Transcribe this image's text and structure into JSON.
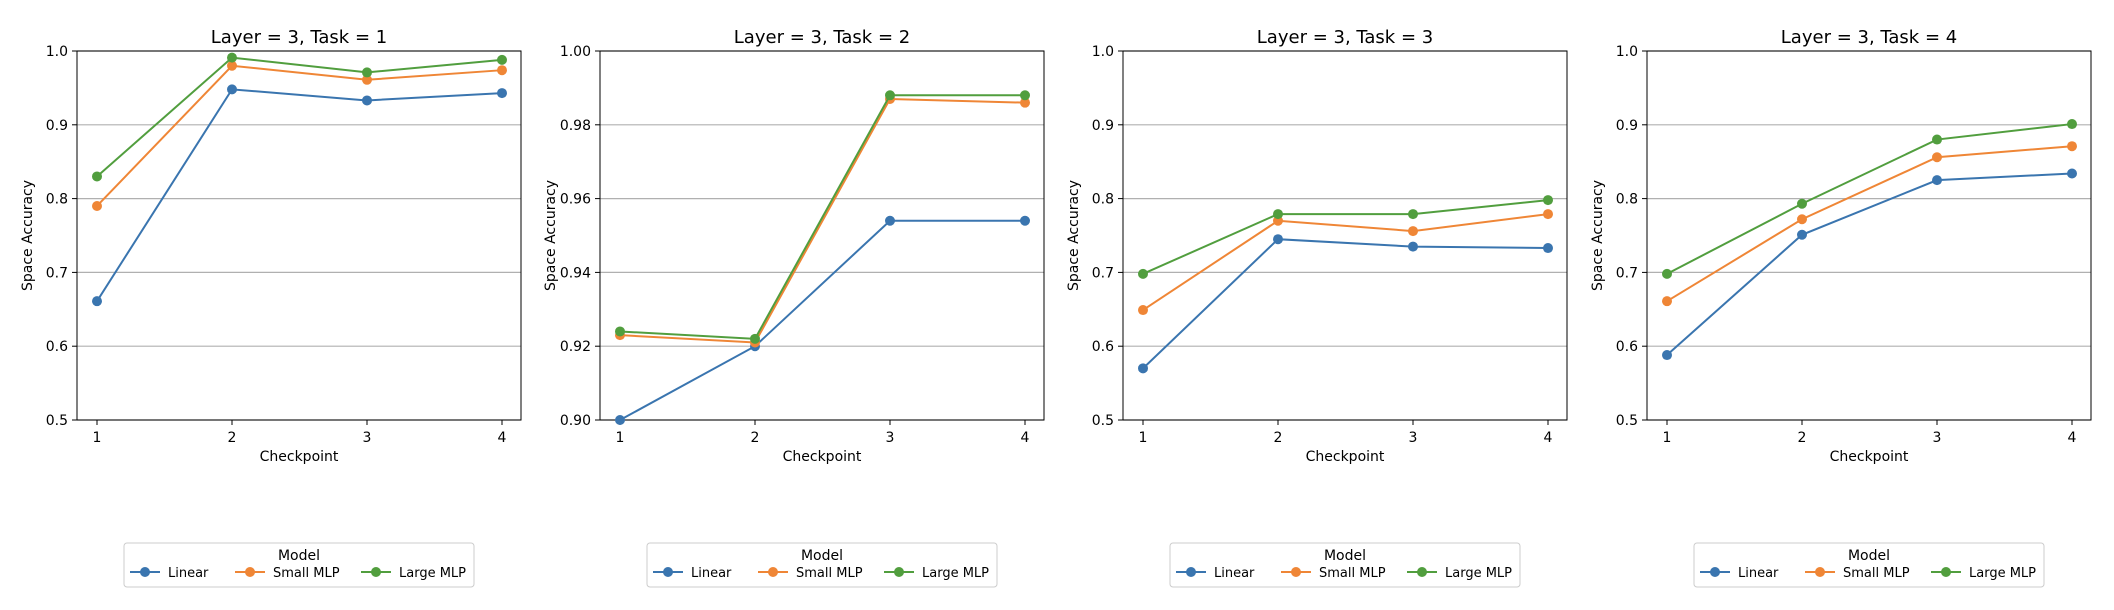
{
  "figure": {
    "legend_title": "Model"
  },
  "colors": {
    "Linear": "#3a75af",
    "Small MLP": "#ef8636",
    "Large MLP": "#519e3e",
    "grid": "#b0b0b0"
  },
  "chart_data": [
    {
      "type": "line",
      "title": "Layer = 3, Task = 1",
      "xlabel": "Checkpoint",
      "ylabel": "Space Accuracy",
      "x": [
        1,
        2,
        3,
        4
      ],
      "xticks": [
        "1",
        "2",
        "3",
        "4"
      ],
      "ylim": [
        0.5,
        1.0
      ],
      "yticks": [
        "0.5",
        "0.6",
        "0.7",
        "0.8",
        "0.9",
        "1.0"
      ],
      "grid": "horizontal",
      "legend": {
        "title": "Model",
        "placement": "bottom-center"
      },
      "series": [
        {
          "name": "Linear",
          "values": [
            0.661,
            0.948,
            0.933,
            0.943
          ]
        },
        {
          "name": "Small MLP",
          "values": [
            0.79,
            0.98,
            0.961,
            0.974
          ]
        },
        {
          "name": "Large MLP",
          "values": [
            0.83,
            0.991,
            0.971,
            0.988
          ]
        }
      ]
    },
    {
      "type": "line",
      "title": "Layer = 3, Task = 2",
      "xlabel": "Checkpoint",
      "ylabel": "Space Accuracy",
      "x": [
        1,
        2,
        3,
        4
      ],
      "xticks": [
        "1",
        "2",
        "3",
        "4"
      ],
      "ylim": [
        0.9,
        1.0
      ],
      "yticks": [
        "0.90",
        "0.92",
        "0.94",
        "0.96",
        "0.98",
        "1.00"
      ],
      "grid": "horizontal",
      "legend": {
        "title": "Model",
        "placement": "bottom-center"
      },
      "series": [
        {
          "name": "Linear",
          "values": [
            0.9,
            0.92,
            0.954,
            0.954
          ]
        },
        {
          "name": "Small MLP",
          "values": [
            0.923,
            0.921,
            0.987,
            0.986
          ]
        },
        {
          "name": "Large MLP",
          "values": [
            0.924,
            0.922,
            0.988,
            0.988
          ]
        }
      ]
    },
    {
      "type": "line",
      "title": "Layer = 3, Task = 3",
      "xlabel": "Checkpoint",
      "ylabel": "Space Accuracy",
      "x": [
        1,
        2,
        3,
        4
      ],
      "xticks": [
        "1",
        "2",
        "3",
        "4"
      ],
      "ylim": [
        0.5,
        1.0
      ],
      "yticks": [
        "0.5",
        "0.6",
        "0.7",
        "0.8",
        "0.9",
        "1.0"
      ],
      "grid": "horizontal",
      "legend": {
        "title": "Model",
        "placement": "bottom-center"
      },
      "series": [
        {
          "name": "Linear",
          "values": [
            0.57,
            0.745,
            0.735,
            0.733
          ]
        },
        {
          "name": "Small MLP",
          "values": [
            0.649,
            0.77,
            0.756,
            0.779
          ]
        },
        {
          "name": "Large MLP",
          "values": [
            0.698,
            0.779,
            0.779,
            0.798
          ]
        }
      ]
    },
    {
      "type": "line",
      "title": "Layer = 3, Task = 4",
      "xlabel": "Checkpoint",
      "ylabel": "Space Accuracy",
      "x": [
        1,
        2,
        3,
        4
      ],
      "xticks": [
        "1",
        "2",
        "3",
        "4"
      ],
      "ylim": [
        0.5,
        1.0
      ],
      "yticks": [
        "0.5",
        "0.6",
        "0.7",
        "0.8",
        "0.9",
        "1.0"
      ],
      "grid": "horizontal",
      "legend": {
        "title": "Model",
        "placement": "bottom-center"
      },
      "series": [
        {
          "name": "Linear",
          "values": [
            0.588,
            0.751,
            0.825,
            0.834
          ]
        },
        {
          "name": "Small MLP",
          "values": [
            0.661,
            0.772,
            0.856,
            0.871
          ]
        },
        {
          "name": "Large MLP",
          "values": [
            0.698,
            0.793,
            0.88,
            0.901
          ]
        }
      ]
    }
  ]
}
